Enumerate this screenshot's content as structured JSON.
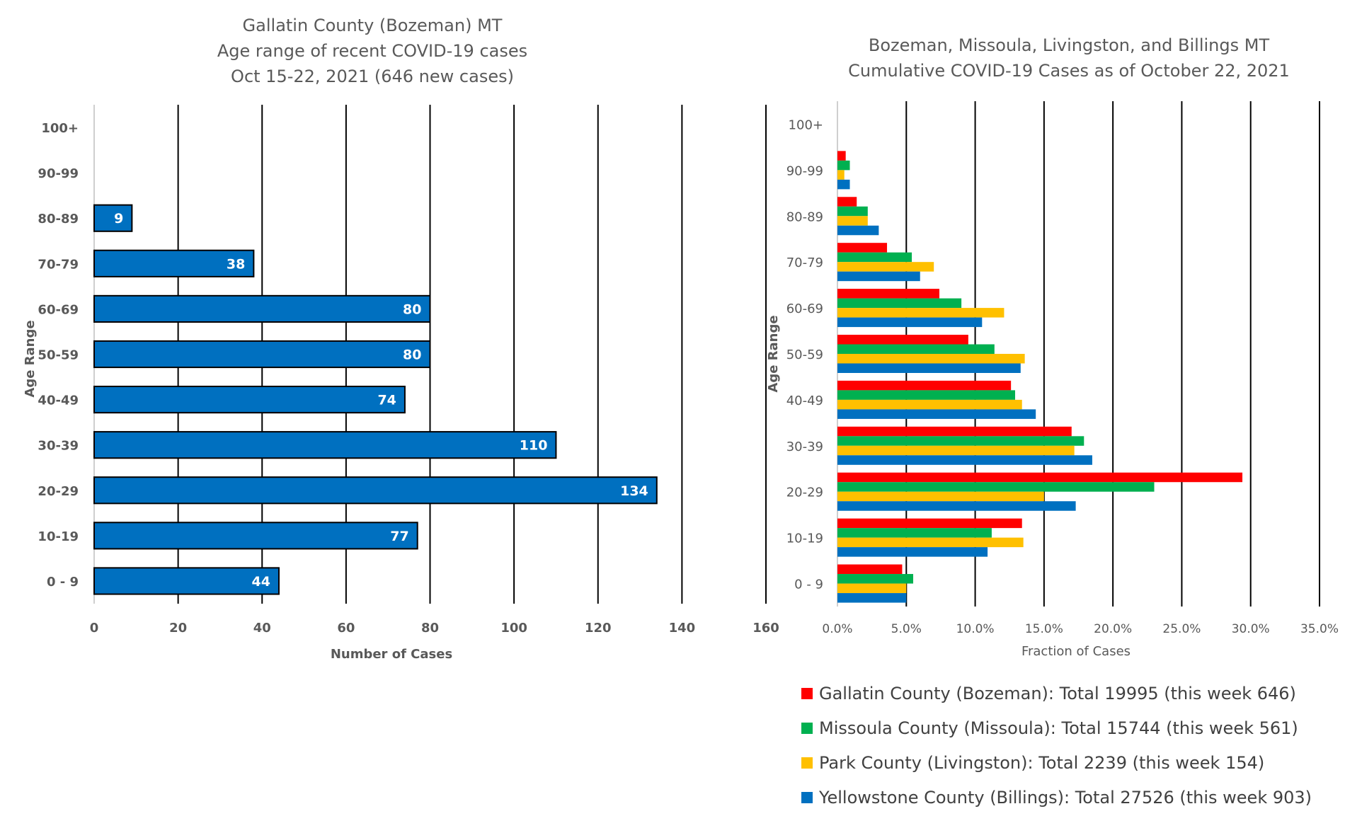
{
  "chart_data": [
    {
      "type": "bar",
      "orientation": "horizontal",
      "title_lines": [
        "Gallatin County (Bozeman) MT",
        "Age range of recent COVID-19 cases",
        "Oct 15-22, 2021 (646 new cases)"
      ],
      "xlabel": "Number of Cases",
      "ylabel": "Age Range",
      "xlim": [
        0,
        160
      ],
      "xticks": [
        0,
        20,
        40,
        60,
        80,
        100,
        120,
        140,
        160
      ],
      "categories": [
        "100+",
        "90-99",
        "80-89",
        "70-79",
        "60-69",
        "50-59",
        "40-49",
        "30-39",
        "20-29",
        "10-19",
        "0 - 9"
      ],
      "values": [
        0,
        0,
        9,
        38,
        80,
        80,
        74,
        110,
        134,
        77,
        44
      ],
      "data_labels": [
        "",
        "",
        "9",
        "38",
        "80",
        "80",
        "74",
        "110",
        "134",
        "77",
        "44"
      ],
      "bar_color": "#0070C0",
      "grid": true
    },
    {
      "type": "bar",
      "orientation": "horizontal",
      "title_lines": [
        "Bozeman, Missoula, Livingston, and Billings MT",
        "Cumulative COVID-19 Cases as of October 22, 2021"
      ],
      "xlabel": "Fraction of Cases",
      "ylabel": "Age Range",
      "xlim": [
        0,
        0.35
      ],
      "xticks": [
        "0.0%",
        "5.0%",
        "10.0%",
        "15.0%",
        "20.0%",
        "25.0%",
        "30.0%",
        "35.0%"
      ],
      "categories": [
        "100+",
        "90-99",
        "80-89",
        "70-79",
        "60-69",
        "50-59",
        "40-49",
        "30-39",
        "20-29",
        "10-19",
        "0 - 9"
      ],
      "series": [
        {
          "name": "Gallatin County (Bozeman): Total 19995 (this week 646)",
          "color": "#FF0000",
          "values": [
            0.0,
            0.006,
            0.014,
            0.036,
            0.074,
            0.095,
            0.126,
            0.17,
            0.294,
            0.134,
            0.047
          ]
        },
        {
          "name": "Missoula County (Missoula): Total 15744 (this week 561)",
          "color": "#00B050",
          "values": [
            0.0,
            0.009,
            0.022,
            0.054,
            0.09,
            0.114,
            0.129,
            0.179,
            0.23,
            0.112,
            0.055
          ]
        },
        {
          "name": "Park County (Livingston): Total 2239 (this week 154)",
          "color": "#FFC000",
          "values": [
            0.0,
            0.005,
            0.022,
            0.07,
            0.121,
            0.136,
            0.134,
            0.172,
            0.15,
            0.135,
            0.05
          ]
        },
        {
          "name": "Yellowstone County (Billings): Total 27526 (this week 903)",
          "color": "#0070C0",
          "values": [
            0.0,
            0.009,
            0.03,
            0.06,
            0.105,
            0.133,
            0.144,
            0.185,
            0.173,
            0.109,
            0.05
          ]
        }
      ],
      "legend_position": "bottom",
      "grid": true
    }
  ]
}
